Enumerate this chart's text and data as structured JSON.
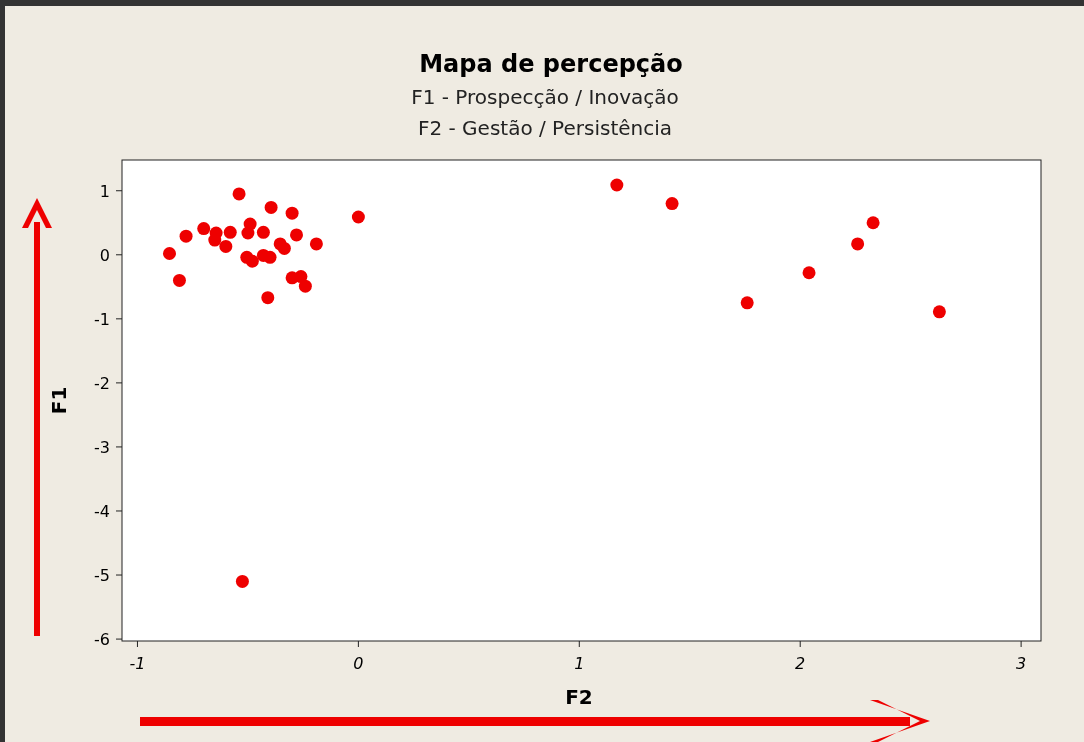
{
  "chart_data": {
    "type": "scatter",
    "title": "Mapa de percepção",
    "subtitle": "F1 - Prospecção / Inovação\nF2 - Gestão / Persistência",
    "xlabel": "F2",
    "ylabel": "F1",
    "x": [
      -0.54,
      -0.395,
      -0.3,
      0.0,
      -0.7,
      -0.78,
      -0.644,
      -0.65,
      -0.58,
      -0.6,
      -0.49,
      -0.5,
      -0.43,
      -0.354,
      -0.335,
      -0.28,
      -0.19,
      -0.855,
      -0.81,
      -0.505,
      -0.48,
      -0.43,
      -0.4,
      -0.3,
      -0.26,
      -0.24,
      -0.41,
      -0.525,
      1.17,
      1.42,
      2.33,
      2.26,
      2.04,
      1.76,
      2.63
    ],
    "values": [
      0.95,
      0.74,
      0.65,
      0.59,
      0.41,
      0.29,
      0.34,
      0.23,
      0.35,
      0.13,
      0.48,
      0.34,
      0.35,
      0.17,
      0.1,
      0.31,
      0.17,
      0.02,
      -0.4,
      -0.04,
      -0.1,
      -0.01,
      -0.04,
      -0.36,
      -0.34,
      -0.49,
      -0.67,
      -5.1,
      1.09,
      0.8,
      0.5,
      0.17,
      -0.28,
      -0.75,
      -0.89
    ],
    "color": "#ee0000",
    "marker": "circle",
    "xlim": [
      -1.07,
      3.09
    ],
    "ylim": [
      -6.03,
      1.48
    ],
    "xticks": [
      -1,
      0,
      1,
      2,
      3
    ],
    "yticks": [
      -6,
      -5,
      -4,
      -3,
      -2,
      -1,
      0,
      1
    ],
    "grid": false
  }
}
